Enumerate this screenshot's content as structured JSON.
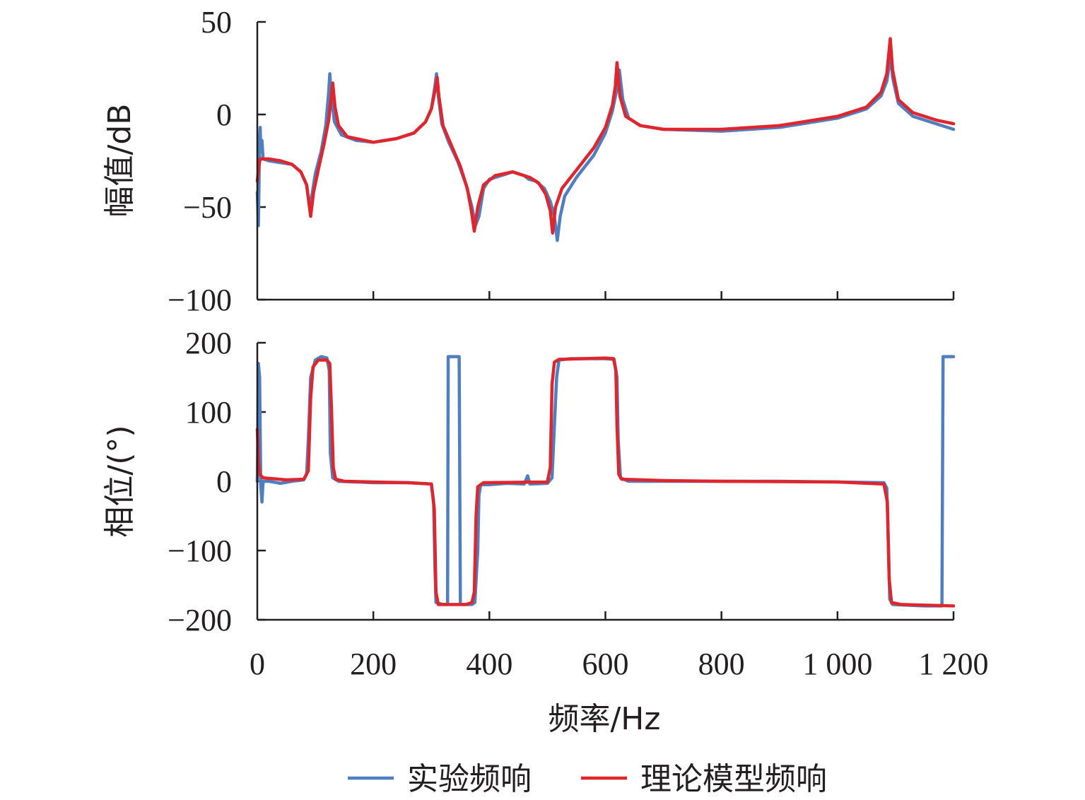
{
  "chart_data": [
    {
      "type": "line",
      "ylabel": "幅值/dB",
      "xlabel": "",
      "xlim": [
        0,
        1200
      ],
      "ylim": [
        -100,
        50
      ],
      "xticks": [
        0,
        200,
        400,
        600,
        800,
        1000,
        1200
      ],
      "yticks": [
        {
          "value": 50,
          "label": "50"
        },
        {
          "value": 0,
          "label": "0"
        },
        {
          "value": -50,
          "label": "−50"
        },
        {
          "value": -100,
          "label": "−100"
        }
      ],
      "series": [
        {
          "name": "实验频响",
          "color": "#4f7fc1",
          "points": [
            [
              0,
              -42
            ],
            [
              2,
              -60
            ],
            [
              4,
              -12
            ],
            [
              5,
              -7
            ],
            [
              6,
              -20
            ],
            [
              8,
              -14
            ],
            [
              10,
              -24
            ],
            [
              20,
              -25
            ],
            [
              40,
              -26
            ],
            [
              60,
              -27
            ],
            [
              75,
              -31
            ],
            [
              85,
              -38
            ],
            [
              90,
              -50
            ],
            [
              95,
              -42
            ],
            [
              100,
              -32
            ],
            [
              110,
              -20
            ],
            [
              118,
              -6
            ],
            [
              123,
              12
            ],
            [
              125,
              22
            ],
            [
              128,
              8
            ],
            [
              133,
              -4
            ],
            [
              145,
              -11
            ],
            [
              170,
              -14
            ],
            [
              200,
              -15
            ],
            [
              240,
              -13
            ],
            [
              270,
              -10
            ],
            [
              290,
              -4
            ],
            [
              300,
              3
            ],
            [
              306,
              15
            ],
            [
              309,
              22
            ],
            [
              312,
              10
            ],
            [
              318,
              -5
            ],
            [
              330,
              -15
            ],
            [
              345,
              -25
            ],
            [
              360,
              -38
            ],
            [
              370,
              -50
            ],
            [
              376,
              -60
            ],
            [
              382,
              -55
            ],
            [
              390,
              -40
            ],
            [
              400,
              -35
            ],
            [
              420,
              -33
            ],
            [
              440,
              -31
            ],
            [
              460,
              -33
            ],
            [
              468,
              -35
            ],
            [
              480,
              -36
            ],
            [
              495,
              -40
            ],
            [
              505,
              -47
            ],
            [
              512,
              -55
            ],
            [
              517,
              -68
            ],
            [
              522,
              -55
            ],
            [
              530,
              -44
            ],
            [
              550,
              -34
            ],
            [
              580,
              -22
            ],
            [
              600,
              -10
            ],
            [
              612,
              2
            ],
            [
              620,
              14
            ],
            [
              624,
              24
            ],
            [
              630,
              8
            ],
            [
              640,
              -2
            ],
            [
              660,
              -6
            ],
            [
              700,
              -8
            ],
            [
              800,
              -9
            ],
            [
              900,
              -7
            ],
            [
              1000,
              -2
            ],
            [
              1050,
              3
            ],
            [
              1075,
              10
            ],
            [
              1085,
              18
            ],
            [
              1092,
              32
            ],
            [
              1095,
              20
            ],
            [
              1105,
              6
            ],
            [
              1130,
              -1
            ],
            [
              1170,
              -5
            ],
            [
              1200,
              -8
            ]
          ]
        },
        {
          "name": "理论模型频响",
          "color": "#e0252d",
          "points": [
            [
              0,
              -36
            ],
            [
              3,
              -27
            ],
            [
              5,
              -24
            ],
            [
              20,
              -24
            ],
            [
              40,
              -25
            ],
            [
              60,
              -27
            ],
            [
              75,
              -31
            ],
            [
              85,
              -38
            ],
            [
              92,
              -55
            ],
            [
              97,
              -42
            ],
            [
              105,
              -30
            ],
            [
              115,
              -16
            ],
            [
              123,
              -3
            ],
            [
              127,
              8
            ],
            [
              130,
              17
            ],
            [
              134,
              4
            ],
            [
              140,
              -6
            ],
            [
              155,
              -12
            ],
            [
              200,
              -15
            ],
            [
              240,
              -13
            ],
            [
              270,
              -10
            ],
            [
              290,
              -4
            ],
            [
              300,
              3
            ],
            [
              307,
              14
            ],
            [
              310,
              20
            ],
            [
              313,
              10
            ],
            [
              320,
              -6
            ],
            [
              335,
              -17
            ],
            [
              350,
              -28
            ],
            [
              362,
              -40
            ],
            [
              369,
              -52
            ],
            [
              374,
              -63
            ],
            [
              380,
              -50
            ],
            [
              390,
              -38
            ],
            [
              410,
              -33
            ],
            [
              440,
              -31
            ],
            [
              470,
              -34
            ],
            [
              485,
              -37
            ],
            [
              497,
              -43
            ],
            [
              505,
              -52
            ],
            [
              509,
              -64
            ],
            [
              514,
              -50
            ],
            [
              525,
              -40
            ],
            [
              550,
              -30
            ],
            [
              580,
              -18
            ],
            [
              600,
              -7
            ],
            [
              612,
              5
            ],
            [
              617,
              15
            ],
            [
              620,
              28
            ],
            [
              625,
              10
            ],
            [
              635,
              -1
            ],
            [
              660,
              -6
            ],
            [
              700,
              -8
            ],
            [
              800,
              -8
            ],
            [
              900,
              -6
            ],
            [
              1000,
              -1
            ],
            [
              1050,
              4
            ],
            [
              1075,
              12
            ],
            [
              1085,
              22
            ],
            [
              1091,
              41
            ],
            [
              1095,
              24
            ],
            [
              1105,
              8
            ],
            [
              1130,
              1
            ],
            [
              1170,
              -3
            ],
            [
              1200,
              -5
            ]
          ]
        }
      ]
    },
    {
      "type": "line",
      "ylabel": "相位/(°)",
      "xlabel": "频率/Hz",
      "xlim": [
        0,
        1200
      ],
      "ylim": [
        -200,
        200
      ],
      "xticks": [
        0,
        200,
        400,
        600,
        800,
        1000,
        1200
      ],
      "xtick_labels": [
        "0",
        "200",
        "400",
        "600",
        "800",
        "1 000",
        "1 200"
      ],
      "yticks": [
        {
          "value": 200,
          "label": "200"
        },
        {
          "value": 100,
          "label": "100"
        },
        {
          "value": 0,
          "label": "0"
        },
        {
          "value": -100,
          "label": "−100"
        },
        {
          "value": -200,
          "label": "−200"
        }
      ],
      "series": [
        {
          "name": "实验频响",
          "color": "#4f7fc1",
          "points": [
            [
              0,
              0
            ],
            [
              2,
              170
            ],
            [
              4,
              150
            ],
            [
              6,
              -5
            ],
            [
              8,
              -30
            ],
            [
              10,
              0
            ],
            [
              20,
              0
            ],
            [
              40,
              -3
            ],
            [
              60,
              0
            ],
            [
              80,
              2
            ],
            [
              85,
              10
            ],
            [
              88,
              60
            ],
            [
              92,
              150
            ],
            [
              100,
              175
            ],
            [
              110,
              180
            ],
            [
              120,
              178
            ],
            [
              124,
              160
            ],
            [
              126,
              40
            ],
            [
              130,
              5
            ],
            [
              140,
              0
            ],
            [
              200,
              -2
            ],
            [
              260,
              -2
            ],
            [
              300,
              -4
            ],
            [
              304,
              -30
            ],
            [
              306,
              -120
            ],
            [
              308,
              -175
            ],
            [
              320,
              -178
            ],
            [
              328,
              -178
            ],
            [
              329,
              180
            ],
            [
              348,
              180
            ],
            [
              350,
              -178
            ],
            [
              370,
              -178
            ],
            [
              375,
              -175
            ],
            [
              380,
              -100
            ],
            [
              382,
              -20
            ],
            [
              385,
              -5
            ],
            [
              400,
              -5
            ],
            [
              430,
              -3
            ],
            [
              460,
              -4
            ],
            [
              466,
              8
            ],
            [
              470,
              -4
            ],
            [
              500,
              -3
            ],
            [
              508,
              5
            ],
            [
              512,
              80
            ],
            [
              516,
              150
            ],
            [
              520,
              175
            ],
            [
              540,
              177
            ],
            [
              600,
              177
            ],
            [
              615,
              176
            ],
            [
              620,
              150
            ],
            [
              622,
              60
            ],
            [
              626,
              5
            ],
            [
              640,
              0
            ],
            [
              700,
              0
            ],
            [
              800,
              0
            ],
            [
              900,
              0
            ],
            [
              1000,
              -1
            ],
            [
              1080,
              -2
            ],
            [
              1085,
              -10
            ],
            [
              1088,
              -100
            ],
            [
              1090,
              -170
            ],
            [
              1095,
              -178
            ],
            [
              1150,
              -180
            ],
            [
              1180,
              -180
            ],
            [
              1182,
              180
            ],
            [
              1200,
              180
            ]
          ]
        },
        {
          "name": "理论模型频响",
          "color": "#e0252d",
          "points": [
            [
              0,
              75
            ],
            [
              2,
              30
            ],
            [
              4,
              10
            ],
            [
              10,
              5
            ],
            [
              50,
              2
            ],
            [
              80,
              3
            ],
            [
              88,
              15
            ],
            [
              92,
              120
            ],
            [
              96,
              165
            ],
            [
              105,
              175
            ],
            [
              120,
              175
            ],
            [
              125,
              170
            ],
            [
              128,
              100
            ],
            [
              131,
              20
            ],
            [
              135,
              3
            ],
            [
              150,
              0
            ],
            [
              200,
              -1
            ],
            [
              260,
              -2
            ],
            [
              300,
              -4
            ],
            [
              305,
              -40
            ],
            [
              308,
              -160
            ],
            [
              312,
              -178
            ],
            [
              360,
              -178
            ],
            [
              370,
              -175
            ],
            [
              374,
              -160
            ],
            [
              377,
              -50
            ],
            [
              380,
              -8
            ],
            [
              390,
              -2
            ],
            [
              500,
              -1
            ],
            [
              505,
              20
            ],
            [
              508,
              140
            ],
            [
              512,
              172
            ],
            [
              520,
              176
            ],
            [
              600,
              178
            ],
            [
              614,
              177
            ],
            [
              618,
              160
            ],
            [
              620,
              80
            ],
            [
              623,
              10
            ],
            [
              628,
              3
            ],
            [
              700,
              1
            ],
            [
              800,
              0
            ],
            [
              1000,
              -1
            ],
            [
              1080,
              -4
            ],
            [
              1086,
              -30
            ],
            [
              1089,
              -140
            ],
            [
              1093,
              -175
            ],
            [
              1110,
              -178
            ],
            [
              1200,
              -180
            ]
          ]
        }
      ]
    }
  ],
  "legend": {
    "items": [
      {
        "label": "实验频响",
        "color": "#4f7fc1"
      },
      {
        "label": "理论模型频响",
        "color": "#e0252d"
      }
    ]
  }
}
